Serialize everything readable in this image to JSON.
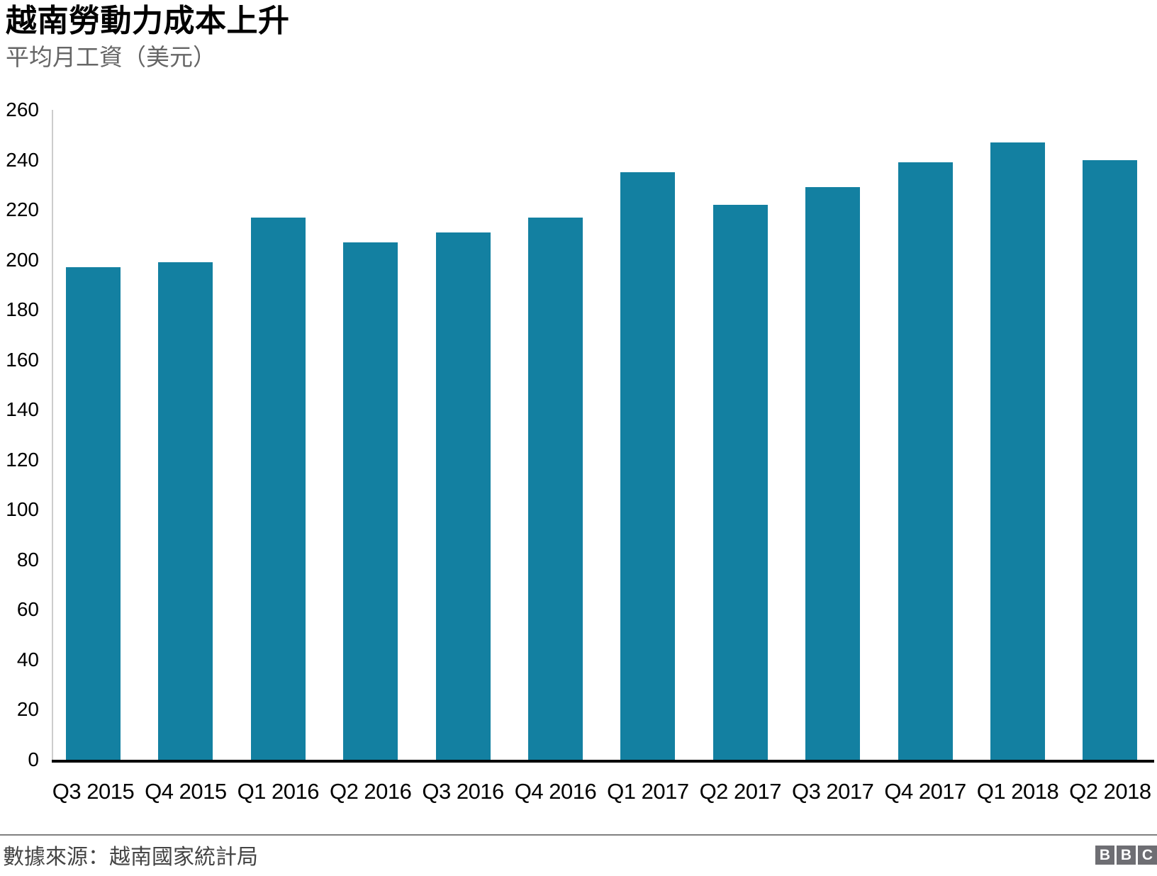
{
  "header": {
    "title": "越南勞動力成本上升",
    "subtitle": "平均月工資（美元）"
  },
  "chart_data": {
    "type": "bar",
    "title": "越南勞動力成本上升",
    "subtitle": "平均月工資（美元）",
    "categories": [
      "Q3 2015",
      "Q4 2015",
      "Q1 2016",
      "Q2 2016",
      "Q3 2016",
      "Q4 2016",
      "Q1 2017",
      "Q2 2017",
      "Q3 2017",
      "Q4 2017",
      "Q1 2018",
      "Q2 2018"
    ],
    "values": [
      197,
      199,
      217,
      207,
      211,
      217,
      235,
      222,
      229,
      239,
      247,
      240
    ],
    "xlabel": "",
    "ylabel": "",
    "ylim": [
      0,
      260
    ],
    "ytick_step": 20,
    "grid": false,
    "legend": false,
    "bar_color": "#1380A1",
    "axis_line_color": "#cccccc",
    "baseline_color": "#000000"
  },
  "footer": {
    "source": "數據來源：越南國家統計局",
    "logo_letters": [
      "B",
      "B",
      "C"
    ]
  }
}
